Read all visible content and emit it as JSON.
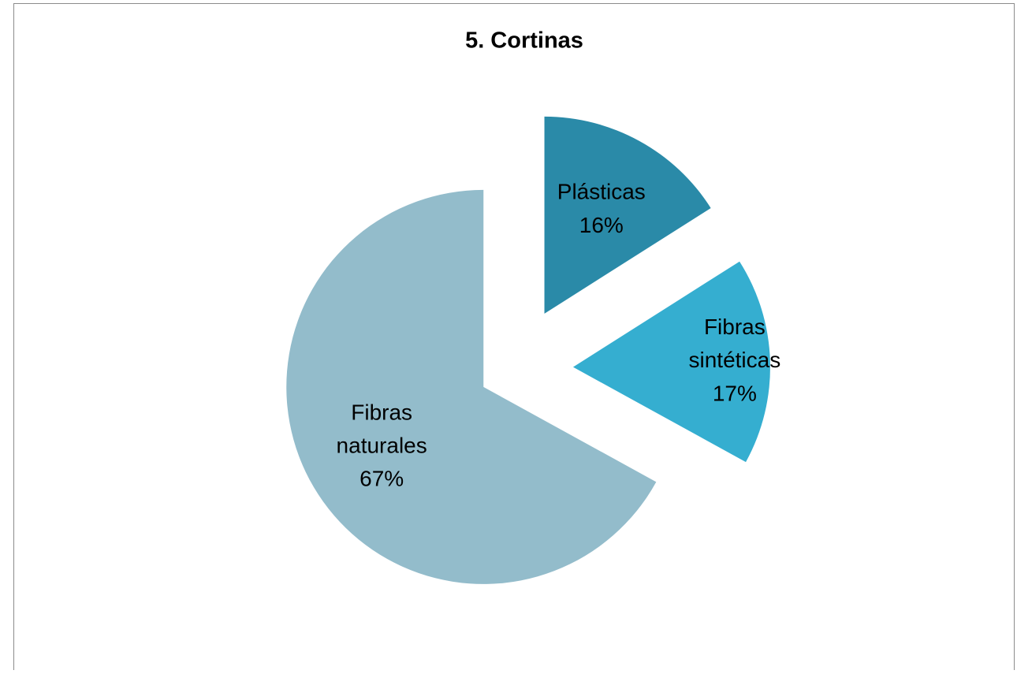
{
  "chart_data": {
    "type": "pie",
    "title": "5. Cortinas",
    "categories": [
      "Plásticas",
      "Fibras sintéticas",
      "Fibras naturales"
    ],
    "values": [
      16,
      17,
      67
    ],
    "value_labels": [
      "16%",
      "17%",
      "67%"
    ],
    "colors": [
      "#2a8aa8",
      "#35aed0",
      "#93bccb"
    ]
  }
}
